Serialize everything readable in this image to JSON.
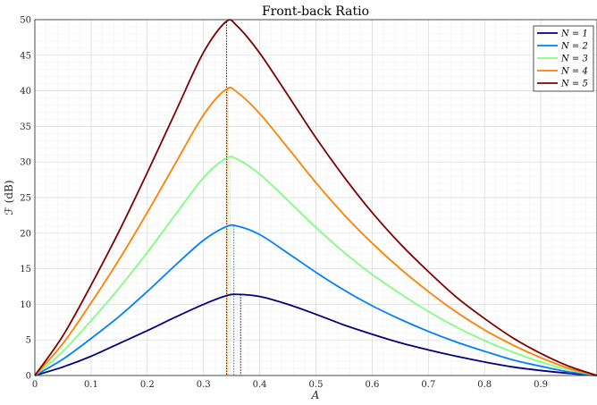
{
  "chart_data": {
    "type": "line",
    "title": "Front-back Ratio",
    "xlabel": "A",
    "ylabel": "ℱ (dB)",
    "xlim": [
      0,
      1
    ],
    "ylim": [
      0,
      50
    ],
    "x_ticks": [
      "0",
      "0.1",
      "0.2",
      "0.3",
      "0.4",
      "0.5",
      "0.6",
      "0.7",
      "0.8",
      "0.9"
    ],
    "y_ticks": [
      "0",
      "5",
      "10",
      "15",
      "20",
      "25",
      "30",
      "35",
      "40",
      "45",
      "50"
    ],
    "grid": true,
    "minor_grid": true,
    "legend_position": "top-right",
    "x": [
      0,
      0.05,
      0.1,
      0.15,
      0.2,
      0.25,
      0.3,
      0.34,
      0.36,
      0.4,
      0.45,
      0.5,
      0.55,
      0.6,
      0.65,
      0.7,
      0.75,
      0.8,
      0.85,
      0.9,
      0.95,
      1.0
    ],
    "series": [
      {
        "name": "N = 1",
        "color": "#000080",
        "peak_x": 0.366,
        "values": [
          0,
          1.2,
          2.7,
          4.5,
          6.3,
          8.2,
          10.0,
          11.2,
          11.4,
          11.1,
          10.0,
          8.6,
          7.1,
          5.8,
          4.6,
          3.6,
          2.7,
          1.9,
          1.2,
          0.7,
          0.3,
          0
        ]
      },
      {
        "name": "N = 2",
        "color": "#0080ff",
        "peak_x": 0.354,
        "values": [
          0,
          2.3,
          5.2,
          8.3,
          11.8,
          15.5,
          19.0,
          20.9,
          21.0,
          19.8,
          17.2,
          14.5,
          12.0,
          9.8,
          7.9,
          6.2,
          4.7,
          3.4,
          2.2,
          1.3,
          0.5,
          0
        ]
      },
      {
        "name": "N = 3",
        "color": "#80ff80",
        "peak_x": 0.347,
        "values": [
          0,
          3.4,
          7.7,
          12.3,
          17.3,
          22.6,
          27.8,
          30.5,
          30.4,
          28.3,
          24.6,
          20.8,
          17.3,
          14.2,
          11.5,
          9.0,
          6.8,
          4.9,
          3.3,
          1.9,
          0.8,
          0
        ]
      },
      {
        "name": "N = 4",
        "color": "#ff8000",
        "peak_x": 0.343,
        "values": [
          0,
          4.5,
          10.2,
          16.3,
          22.9,
          29.8,
          36.6,
          40.2,
          39.8,
          36.8,
          32.0,
          27.1,
          22.6,
          18.6,
          15.0,
          11.8,
          8.9,
          6.4,
          4.3,
          2.5,
          1.0,
          0
        ]
      },
      {
        "name": "N = 5",
        "color": "#800000",
        "peak_x": 0.341,
        "values": [
          0,
          5.6,
          12.7,
          20.3,
          28.5,
          37.0,
          45.4,
          49.7,
          49.1,
          45.3,
          39.4,
          33.4,
          27.9,
          22.9,
          18.5,
          14.6,
          11.0,
          8.0,
          5.3,
          3.1,
          1.3,
          0
        ]
      }
    ]
  }
}
